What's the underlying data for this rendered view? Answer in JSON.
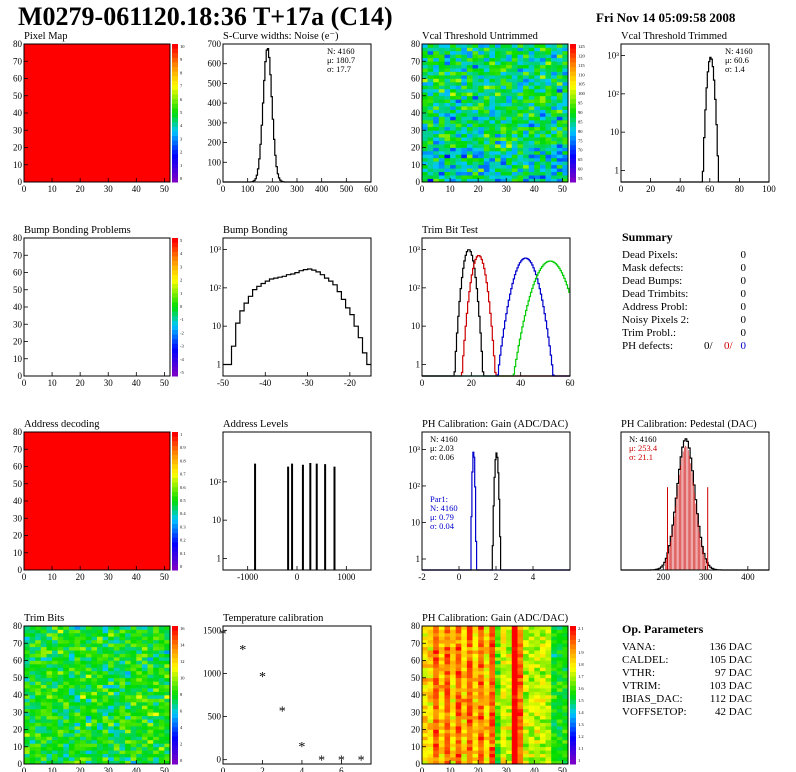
{
  "header": {
    "title": "M0279-061120.18:36 T+17a (C14)",
    "date": "Fri Nov 14 05:09:58 2008"
  },
  "colors": {
    "hist_line": "#000000",
    "map_red": "#ff0000",
    "trim_red": "#cc0000",
    "trim_blue": "#0000cc",
    "trim_green": "#00cc00",
    "fit_blue": "#0000cc",
    "fit_red": "#cc0000"
  },
  "summary": {
    "title": "Summary",
    "rows": [
      {
        "label": "Dead Pixels:",
        "value": "0"
      },
      {
        "label": "Mask defects:",
        "value": "0"
      },
      {
        "label": "Dead Bumps:",
        "value": "0"
      },
      {
        "label": "Dead Trimbits:",
        "value": "0"
      },
      {
        "label": "Address Probl:",
        "value": "0"
      },
      {
        "label": "Noisy Pixels 2:",
        "value": "0"
      },
      {
        "label": "Trim Probl.:",
        "value": "0"
      }
    ],
    "ph_defects": {
      "label": "PH defects:",
      "v1": "0/",
      "v2": "0/",
      "v3": "0"
    }
  },
  "op_params": {
    "title": "Op. Parameters",
    "rows": [
      {
        "label": "VANA:",
        "value": "136 DAC"
      },
      {
        "label": "CALDEL:",
        "value": "105 DAC"
      },
      {
        "label": "VTHR:",
        "value": "97 DAC"
      },
      {
        "label": "VTRIM:",
        "value": "103 DAC"
      },
      {
        "label": "IBIAS_DAC:",
        "value": "112 DAC"
      },
      {
        "label": "VOFFSETOP:",
        "value": "42 DAC"
      }
    ]
  },
  "chart_data": [
    {
      "id": "pixel-map",
      "type": "heatmap",
      "title": "Pixel Map",
      "xlim": [
        0,
        52
      ],
      "ylim": [
        0,
        80
      ],
      "xticks": [
        "0",
        "10",
        "20",
        "30",
        "40",
        "50"
      ],
      "yticks": [
        "0",
        "10",
        "20",
        "30",
        "40",
        "50",
        "60",
        "70",
        "80"
      ],
      "fill": "uniform",
      "value": 10,
      "zticks": [
        "10",
        "9",
        "8",
        "7",
        "6",
        "5",
        "4",
        "3",
        "2",
        "1",
        "0"
      ]
    },
    {
      "id": "scurve",
      "type": "line",
      "title": "S-Curve widths: Noise (e⁻)",
      "xlim": [
        0,
        600
      ],
      "ylim": [
        0,
        700
      ],
      "xticks": [
        "0",
        "100",
        "200",
        "300",
        "400",
        "500",
        "600"
      ],
      "yticks": [
        "0",
        "100",
        "200",
        "300",
        "400",
        "500",
        "600",
        "700"
      ],
      "stats": [
        "N: 4160",
        "μ: 180.7",
        "σ: 17.7"
      ],
      "peak": {
        "mu": 180.7,
        "sigma": 17.7,
        "height": 680
      }
    },
    {
      "id": "vcal-untrimmed",
      "type": "heatmap",
      "title": "Vcal Threshold Untrimmed",
      "xlim": [
        0,
        52
      ],
      "ylim": [
        0,
        80
      ],
      "xticks": [
        "0",
        "10",
        "20",
        "30",
        "40",
        "50"
      ],
      "yticks": [
        "0",
        "10",
        "20",
        "30",
        "40",
        "50",
        "60",
        "70",
        "80"
      ],
      "fill": "noise",
      "zticks": [
        "125",
        "120",
        "115",
        "110",
        "105",
        "100",
        "95",
        "90",
        "85",
        "80",
        "75",
        "70",
        "65",
        "60",
        "55"
      ]
    },
    {
      "id": "vcal-trimmed",
      "type": "line",
      "title": "Vcal Threshold Trimmed",
      "xlim": [
        0,
        100
      ],
      "ylim": [
        0.5,
        2000
      ],
      "log": true,
      "xticks": [
        "0",
        "20",
        "40",
        "60",
        "80",
        "100"
      ],
      "yticks": [
        "1",
        "10",
        "10²",
        "10³"
      ],
      "stats": [
        "N: 4160",
        "μ: 60.6",
        "σ: 1.4"
      ],
      "peak": {
        "mu": 60.6,
        "sigma": 1.4,
        "height": 900
      }
    },
    {
      "id": "bump-problems",
      "type": "heatmap",
      "title": "Bump Bonding Problems",
      "xlim": [
        0,
        52
      ],
      "ylim": [
        0,
        80
      ],
      "xticks": [
        "0",
        "10",
        "20",
        "30",
        "40",
        "50"
      ],
      "yticks": [
        "0",
        "10",
        "20",
        "30",
        "40",
        "50",
        "60",
        "70",
        "80"
      ],
      "fill": "empty",
      "zticks": [
        "5",
        "4",
        "3",
        "2",
        "1",
        "0",
        "-1",
        "-2",
        "-3",
        "-4",
        "-5"
      ]
    },
    {
      "id": "bump-bonding",
      "type": "line",
      "title": "Bump Bonding",
      "xlim": [
        -50,
        -15
      ],
      "ylim": [
        0.5,
        2000
      ],
      "log": true,
      "xticks": [
        "-50",
        "-40",
        "-30",
        "-20"
      ],
      "yticks": [
        "1",
        "10",
        "10²",
        "10³"
      ],
      "stats": [],
      "x": [
        -50,
        -49,
        -48,
        -47,
        -46,
        -45,
        -44,
        -43,
        -42,
        -41,
        -40,
        -39,
        -38,
        -37,
        -36,
        -35,
        -34,
        -33,
        -32,
        -31,
        -30,
        -29,
        -28,
        -27,
        -26,
        -25,
        -24,
        -23,
        -22,
        -21,
        -20,
        -19,
        -18,
        -17,
        -16
      ],
      "values": [
        1,
        1,
        3,
        12,
        25,
        40,
        60,
        90,
        110,
        130,
        150,
        170,
        180,
        190,
        200,
        220,
        230,
        250,
        280,
        300,
        310,
        290,
        260,
        220,
        180,
        150,
        120,
        80,
        50,
        30,
        20,
        10,
        5,
        2,
        1
      ]
    },
    {
      "id": "trim-bit-test",
      "type": "line",
      "title": "Trim Bit Test",
      "xlim": [
        0,
        60
      ],
      "ylim": [
        0.5,
        2000
      ],
      "log": true,
      "xticks": [
        "0",
        "20",
        "40",
        "60"
      ],
      "yticks": [
        "1",
        "10",
        "10²",
        "10³"
      ],
      "stats": [],
      "series": [
        {
          "color": "#000000",
          "mu": 19,
          "sigma": 1.5,
          "height": 1000
        },
        {
          "color": "#cc0000",
          "mu": 23,
          "sigma": 1.8,
          "height": 700
        },
        {
          "color": "#0000cc",
          "mu": 42,
          "sigma": 3,
          "height": 600
        },
        {
          "color": "#00cc00",
          "mu": 52,
          "sigma": 4,
          "height": 500
        }
      ]
    },
    {
      "id": "address-decoding",
      "type": "heatmap",
      "title": "Address decoding",
      "xlim": [
        0,
        52
      ],
      "ylim": [
        0,
        80
      ],
      "xticks": [
        "0",
        "10",
        "20",
        "30",
        "40",
        "50"
      ],
      "yticks": [
        "0",
        "10",
        "20",
        "30",
        "40",
        "50",
        "60",
        "70",
        "80"
      ],
      "fill": "uniform",
      "value": 1,
      "zticks": [
        "1",
        "0.9",
        "0.8",
        "0.7",
        "0.6",
        "0.5",
        "0.4",
        "0.3",
        "0.2",
        "0.1",
        "0"
      ]
    },
    {
      "id": "address-levels",
      "type": "line",
      "title": "Address Levels",
      "xlim": [
        -1500,
        1500
      ],
      "ylim": [
        0.5,
        2000
      ],
      "log": true,
      "xticks": [
        "-1000",
        "0",
        "1000"
      ],
      "yticks": [
        "1",
        "10",
        "10²"
      ],
      "stats": [],
      "spikes": [
        {
          "x": -850,
          "h": 300
        },
        {
          "x": -180,
          "h": 250
        },
        {
          "x": -100,
          "h": 300
        },
        {
          "x": 120,
          "h": 280
        },
        {
          "x": 270,
          "h": 310
        },
        {
          "x": 400,
          "h": 300
        },
        {
          "x": 570,
          "h": 290
        },
        {
          "x": 760,
          "h": 250
        }
      ]
    },
    {
      "id": "ph-gain",
      "type": "line",
      "title": "PH Calibration: Gain (ADC/DAC)",
      "xlim": [
        -2,
        6
      ],
      "ylim": [
        0.5,
        3000
      ],
      "log": true,
      "xticks": [
        "-2",
        "0",
        "2",
        "4"
      ],
      "yticks": [
        "1",
        "10",
        "10²",
        "10³"
      ],
      "stats": [
        "N: 4160",
        "μ: 2.03",
        "σ: 0.06"
      ],
      "stats2": [
        "Par1:",
        "N: 4160",
        "μ: 0.79",
        "σ: 0.04"
      ],
      "series": [
        {
          "color": "#0000cc",
          "mu": 0.79,
          "sigma": 0.04,
          "height": 900
        },
        {
          "color": "#000000",
          "mu": 2.03,
          "sigma": 0.06,
          "height": 800
        }
      ]
    },
    {
      "id": "ph-pedestal",
      "type": "line",
      "title": "PH Calibration: Pedestal (DAC)",
      "xlim": [
        100,
        450
      ],
      "ylim": [
        0,
        100
      ],
      "xticks": [
        "200",
        "300",
        "400"
      ],
      "yticks": [],
      "stats": [
        "N: 4160",
        "μ: 253.4",
        "σ: 21.1"
      ],
      "peak": {
        "mu": 253.4,
        "sigma": 21.1,
        "height": 95
      }
    },
    {
      "id": "trim-bits",
      "type": "heatmap",
      "title": "Trim Bits",
      "xlim": [
        0,
        52
      ],
      "ylim": [
        0,
        80
      ],
      "xticks": [
        "0",
        "10",
        "20",
        "30",
        "40",
        "50"
      ],
      "yticks": [
        "0",
        "10",
        "20",
        "30",
        "40",
        "50",
        "60",
        "70",
        "80"
      ],
      "fill": "noise-center",
      "zticks": [
        "16",
        "14",
        "12",
        "10",
        "8",
        "6",
        "4",
        "2",
        "0"
      ]
    },
    {
      "id": "temp-calibration",
      "type": "scatter",
      "title": "Temperature calibration",
      "xlim": [
        0,
        7.5
      ],
      "ylim": [
        -50,
        1550
      ],
      "xticks": [
        "0",
        "2",
        "4",
        "6"
      ],
      "yticks": [
        "0",
        "500",
        "1000",
        "1500"
      ],
      "x": [
        0,
        1,
        2,
        3,
        4,
        5,
        6,
        7
      ],
      "values": [
        1450,
        1270,
        960,
        560,
        150,
        -10,
        -10,
        -10
      ]
    },
    {
      "id": "ph-gain-map",
      "type": "heatmap",
      "title": "PH Calibration: Gain (ADC/DAC)",
      "xlim": [
        0,
        52
      ],
      "ylim": [
        0,
        80
      ],
      "xticks": [
        "0",
        "10",
        "20",
        "30",
        "40",
        "50"
      ],
      "yticks": [
        "0",
        "10",
        "20",
        "30",
        "40",
        "50",
        "60",
        "70",
        "80"
      ],
      "fill": "gain-stripes",
      "zticks": [
        "2.1",
        "2",
        "1.9",
        "1.8",
        "1.7",
        "1.6",
        "1.5",
        "1.4",
        "1.3",
        "1.2",
        "1.1",
        "1"
      ]
    }
  ]
}
